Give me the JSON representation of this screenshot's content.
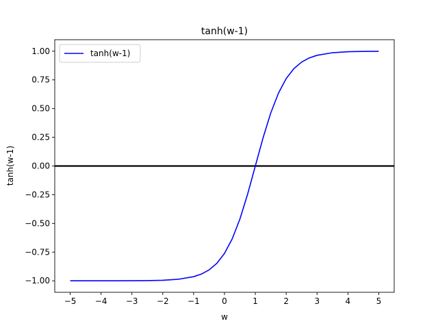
{
  "chart_data": {
    "type": "line",
    "title": "tanh(w-1)",
    "xlabel": "w",
    "ylabel": "tanh(w-1)",
    "xlim": [
      -5.5,
      5.5
    ],
    "ylim": [
      -1.1,
      1.1
    ],
    "x_ticks": [
      -5,
      -4,
      -3,
      -2,
      -1,
      0,
      1,
      2,
      3,
      4,
      5
    ],
    "x_tick_labels": [
      "−5",
      "−4",
      "−3",
      "−2",
      "−1",
      "0",
      "1",
      "2",
      "3",
      "4",
      "5"
    ],
    "y_ticks": [
      -1.0,
      -0.75,
      -0.5,
      -0.25,
      0.0,
      0.25,
      0.5,
      0.75,
      1.0
    ],
    "y_tick_labels": [
      "−1.00",
      "−0.75",
      "−0.50",
      "−0.25",
      "0.00",
      "0.25",
      "0.50",
      "0.75",
      "1.00"
    ],
    "grid": false,
    "legend": {
      "position": "upper-left",
      "entries": [
        "tanh(w-1)"
      ]
    },
    "series": [
      {
        "name": "tanh(w-1)",
        "color": "#0000ff",
        "x": [
          -5,
          -4.5,
          -4,
          -3.5,
          -3,
          -2.5,
          -2,
          -1.5,
          -1,
          -0.75,
          -0.5,
          -0.25,
          0,
          0.25,
          0.5,
          0.75,
          1,
          1.25,
          1.5,
          1.75,
          2,
          2.25,
          2.5,
          2.75,
          3,
          3.5,
          4,
          4.5,
          5
        ],
        "y": [
          -1.0,
          -1.0,
          -0.9999,
          -0.9998,
          -0.9993,
          -0.9982,
          -0.9951,
          -0.9866,
          -0.964,
          -0.9414,
          -0.9051,
          -0.8483,
          -0.7616,
          -0.6351,
          -0.4621,
          -0.2449,
          0.0,
          0.2449,
          0.4621,
          0.6351,
          0.7616,
          0.8483,
          0.9051,
          0.9414,
          0.964,
          0.9866,
          0.9951,
          0.9982,
          0.9993
        ]
      }
    ],
    "reference_lines": [
      {
        "axis": "y",
        "value": 0,
        "color": "#000000"
      }
    ]
  }
}
